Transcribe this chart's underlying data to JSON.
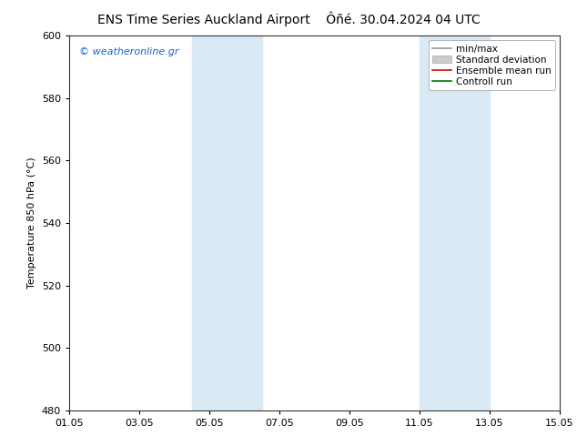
{
  "title_left": "ENS Time Series Auckland Airport",
  "title_right": "Ôñé. 30.04.2024 04 UTC",
  "ylabel": "Temperature 850 hPa (°C)",
  "watermark": "© weatheronline.gr",
  "ylim": [
    480,
    600
  ],
  "yticks": [
    480,
    500,
    520,
    540,
    560,
    580,
    600
  ],
  "xlim": [
    0,
    14
  ],
  "xtick_positions": [
    0,
    2,
    4,
    6,
    8,
    10,
    12,
    14
  ],
  "xtick_labels": [
    "01.05",
    "03.05",
    "05.05",
    "07.05",
    "09.05",
    "11.05",
    "13.05",
    "15.05"
  ],
  "shaded_bands": [
    {
      "xstart": 3.5,
      "xend": 5.5
    },
    {
      "xstart": 10.0,
      "xend": 12.0
    }
  ],
  "band_color": "#daeaf5",
  "legend_items": [
    {
      "label": "min/max",
      "color": "#999999",
      "lw": 1.2,
      "style": "-",
      "type": "line"
    },
    {
      "label": "Standard deviation",
      "color": "#cccccc",
      "lw": 6,
      "style": "-",
      "type": "patch"
    },
    {
      "label": "Ensemble mean run",
      "color": "#dd0000",
      "lw": 1.2,
      "style": "-",
      "type": "line"
    },
    {
      "label": "Controll run",
      "color": "#007700",
      "lw": 1.2,
      "style": "-",
      "type": "line"
    }
  ],
  "bg_color": "#ffffff",
  "plot_bg_color": "#ffffff",
  "title_fontsize": 10,
  "axis_fontsize": 8,
  "tick_fontsize": 8,
  "watermark_color": "#1166cc",
  "watermark_fontsize": 8,
  "legend_fontsize": 7.5,
  "spine_color": "#333333",
  "spine_lw": 0.8
}
